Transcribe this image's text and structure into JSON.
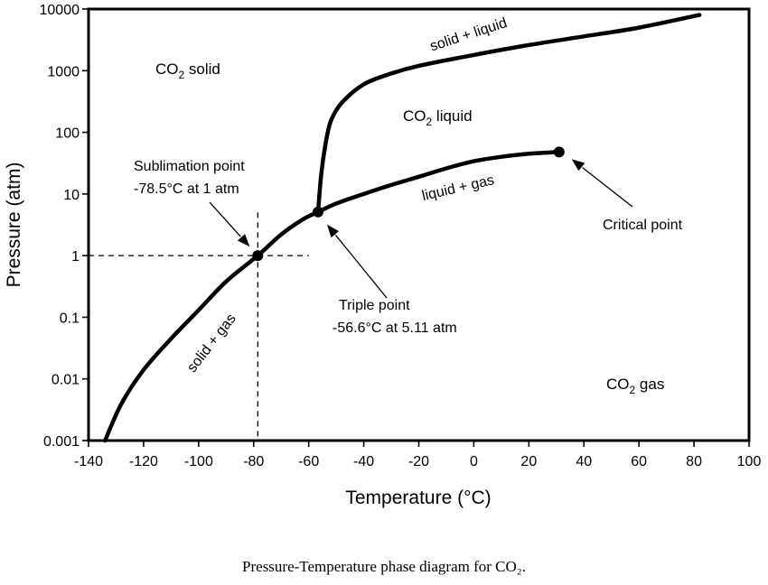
{
  "chart_data": {
    "type": "line",
    "xlabel": "Temperature (°C)",
    "ylabel": "Pressure (atm)",
    "xlim": [
      -140,
      100
    ],
    "ylim": [
      0.001,
      10000
    ],
    "y_scale": "log",
    "grid": false,
    "x_ticks": [
      "-140",
      "-120",
      "-100",
      "-80",
      "-60",
      "-40",
      "-20",
      "0",
      "20",
      "40",
      "60",
      "80",
      "100"
    ],
    "y_ticks": [
      "0.001",
      "0.01",
      "0.1",
      "1",
      "10",
      "100",
      "1000",
      "10000"
    ],
    "series": [
      {
        "name": "solid + gas",
        "x": [
          -134,
          -128,
          -120,
          -110,
          -100,
          -90,
          -78.5,
          -70,
          -62,
          -56.6
        ],
        "y": [
          0.001,
          0.004,
          0.014,
          0.045,
          0.13,
          0.38,
          1,
          2.2,
          3.9,
          5.11
        ]
      },
      {
        "name": "liquid + gas",
        "x": [
          -56.6,
          -50,
          -40,
          -30,
          -20,
          -10,
          0,
          10,
          20,
          31
        ],
        "y": [
          5.11,
          7,
          10,
          14,
          19,
          26,
          34,
          40,
          45,
          48
        ]
      },
      {
        "name": "solid + liquid",
        "x": [
          -56.6,
          -55.5,
          -54,
          -52,
          -48,
          -40,
          -30,
          -20,
          0,
          20,
          40,
          60,
          82
        ],
        "y": [
          5.11,
          20,
          60,
          150,
          300,
          600,
          900,
          1200,
          1800,
          2600,
          3600,
          5000,
          8000
        ]
      }
    ],
    "points": [
      {
        "name": "Sublimation point",
        "x": -78.5,
        "y": 1
      },
      {
        "name": "Triple point",
        "x": -56.6,
        "y": 5.11
      },
      {
        "name": "Critical point",
        "x": 31,
        "y": 48
      }
    ],
    "region_labels": [
      {
        "label": "CO",
        "sub": "2",
        "rest": " solid"
      },
      {
        "label": "CO",
        "sub": "2",
        "rest": " liquid"
      },
      {
        "label": "CO",
        "sub": "2",
        "rest": " gas"
      }
    ],
    "curve_labels": [
      "solid + liquid",
      "liquid + gas",
      "solid + gas"
    ],
    "annotations": {
      "sublimation": [
        "Sublimation point",
        "-78.5°C at 1 atm"
      ],
      "triple": [
        "Triple point",
        "-56.6°C at 5.11 atm"
      ],
      "critical": [
        "Critical point"
      ]
    },
    "caption": "Pressure-Temperature phase diagram for CO₂."
  }
}
